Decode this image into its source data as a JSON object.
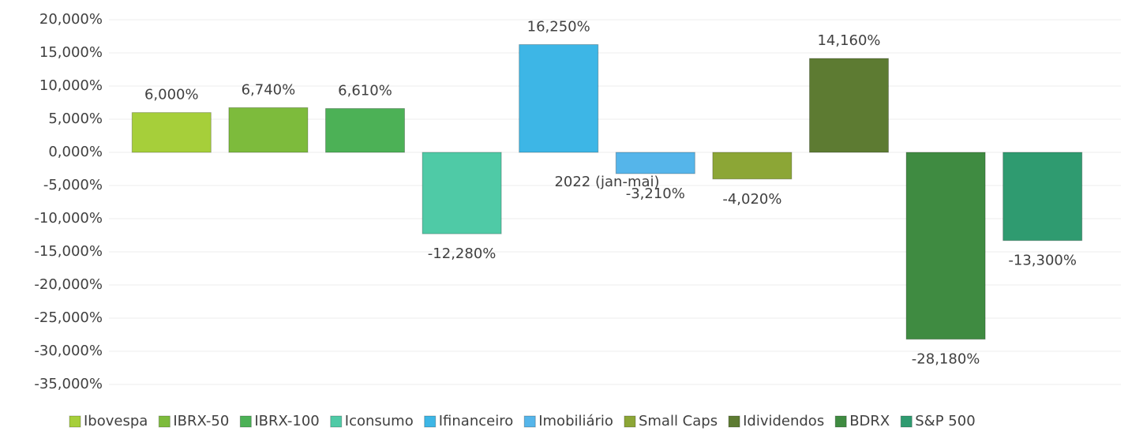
{
  "chart_data": {
    "type": "bar",
    "categories": [
      "2022 (jan-mai)"
    ],
    "series": [
      {
        "name": "Ibovespa",
        "color": "#a6cf3a",
        "values": [
          6
        ],
        "value_labels": [
          "6,000%"
        ]
      },
      {
        "name": "IBRX-50",
        "color": "#7dbb3c",
        "values": [
          6.74
        ],
        "value_labels": [
          "6,740%"
        ]
      },
      {
        "name": "IBRX-100",
        "color": "#4cb156",
        "values": [
          6.61
        ],
        "value_labels": [
          "6,610%"
        ]
      },
      {
        "name": "Iconsumo",
        "color": "#4fcaa6",
        "values": [
          -12.28
        ],
        "value_labels": [
          "-12,280%"
        ]
      },
      {
        "name": "Ifinanceiro",
        "color": "#3db6e6",
        "values": [
          16.25
        ],
        "value_labels": [
          "16,250%"
        ]
      },
      {
        "name": "Imobiliário",
        "color": "#55b5ea",
        "values": [
          -3.21
        ],
        "value_labels": [
          "-3,210%"
        ]
      },
      {
        "name": "Small Caps",
        "color": "#8ca636",
        "values": [
          -4.02
        ],
        "value_labels": [
          "-4,020%"
        ]
      },
      {
        "name": "Idividendos",
        "color": "#5d7b32",
        "values": [
          14.16
        ],
        "value_labels": [
          "14,160%"
        ]
      },
      {
        "name": "BDRX",
        "color": "#3f8b41",
        "values": [
          -28.18
        ],
        "value_labels": [
          "-28,180%"
        ]
      },
      {
        "name": "S&P 500",
        "color": "#2f9b70",
        "values": [
          -13.3
        ],
        "value_labels": [
          "-13,300%"
        ]
      }
    ],
    "ylim": [
      -35,
      20
    ],
    "yticks": [
      {
        "value": -35,
        "label": "-35,000%"
      },
      {
        "value": -30,
        "label": "-30,000%"
      },
      {
        "value": -25,
        "label": "-25,000%"
      },
      {
        "value": -20,
        "label": "-20,000%"
      },
      {
        "value": -15,
        "label": "-15,000%"
      },
      {
        "value": -10,
        "label": "-10,000%"
      },
      {
        "value": -5,
        "label": "-5,000%"
      },
      {
        "value": 0,
        "label": "0,000%"
      },
      {
        "value": 5,
        "label": "5,000%"
      },
      {
        "value": 10,
        "label": "10,000%"
      },
      {
        "value": 15,
        "label": "15,000%"
      },
      {
        "value": 20,
        "label": "20,000%"
      }
    ],
    "grid": true,
    "legend": "bottom"
  }
}
